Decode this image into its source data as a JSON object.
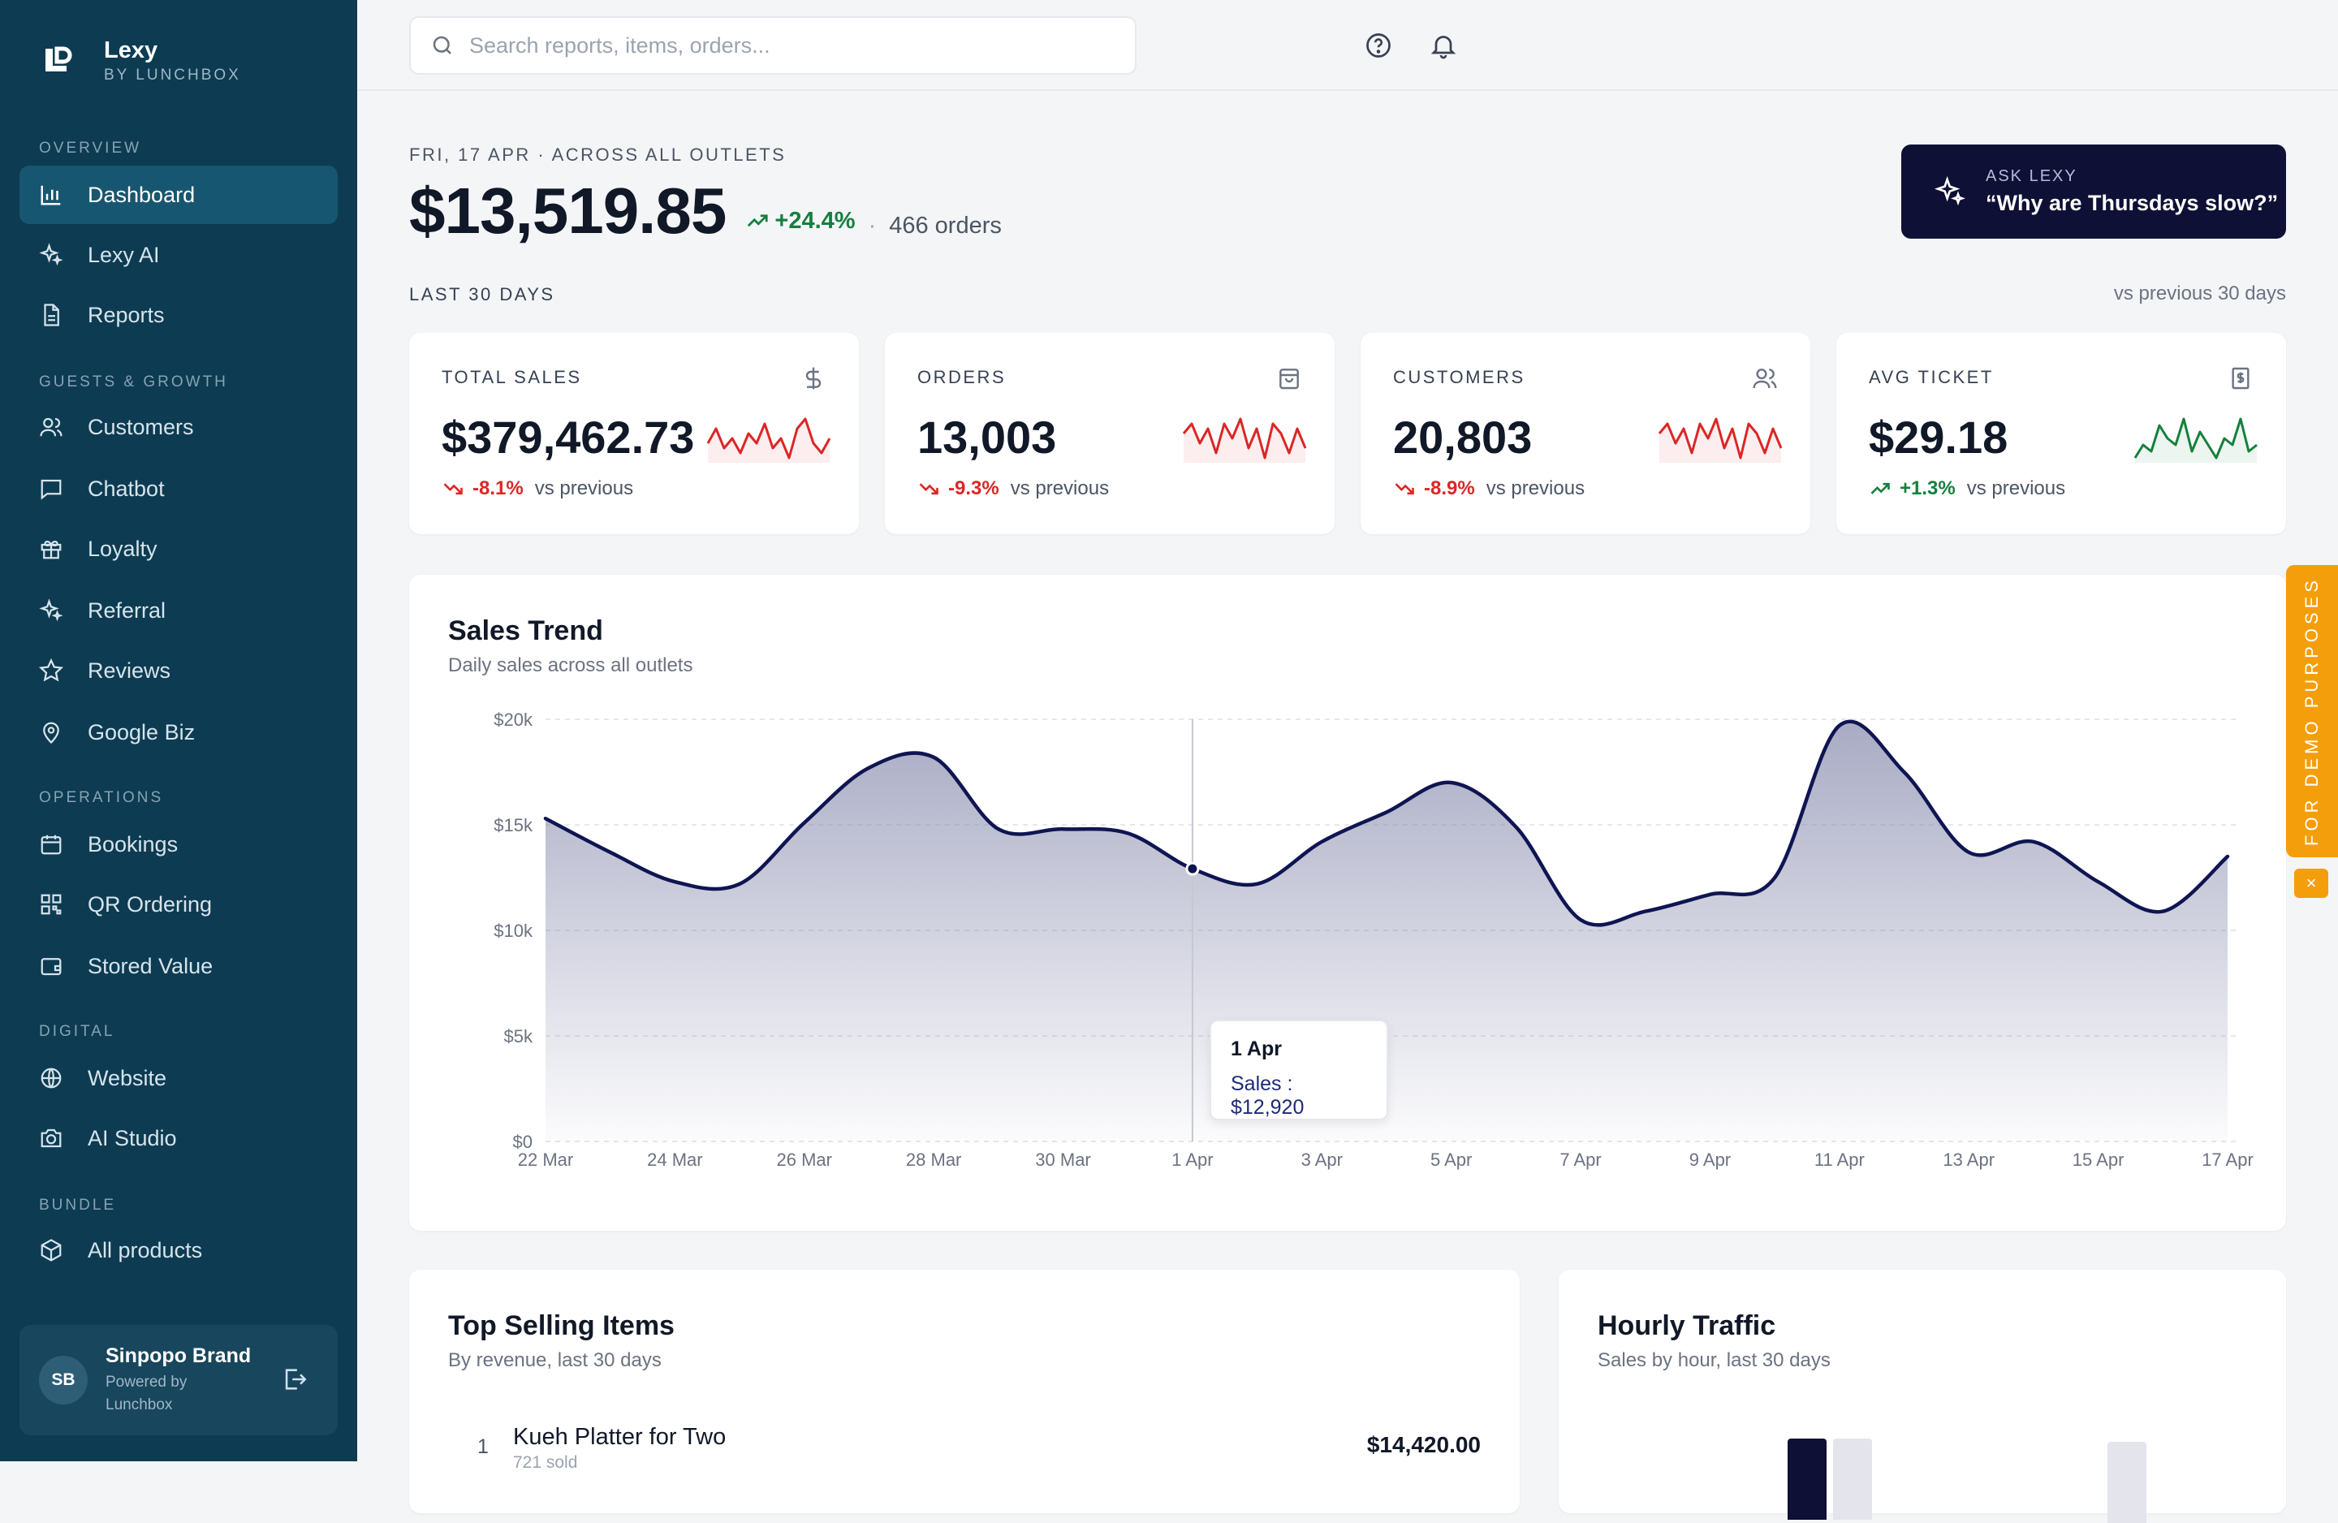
{
  "brand": {
    "name": "Lexy",
    "sub": "BY LUNCHBOX"
  },
  "sidebar": {
    "sections": [
      {
        "label": "OVERVIEW",
        "items": [
          {
            "label": "Dashboard",
            "icon": "bar-chart-icon",
            "active": true
          },
          {
            "label": "Lexy AI",
            "icon": "sparkles-icon"
          },
          {
            "label": "Reports",
            "icon": "document-icon"
          }
        ]
      },
      {
        "label": "GUESTS & GROWTH",
        "items": [
          {
            "label": "Customers",
            "icon": "users-icon"
          },
          {
            "label": "Chatbot",
            "icon": "chat-icon"
          },
          {
            "label": "Loyalty",
            "icon": "gift-icon"
          },
          {
            "label": "Referral",
            "icon": "sparkles-icon"
          },
          {
            "label": "Reviews",
            "icon": "star-icon"
          },
          {
            "label": "Google Biz",
            "icon": "map-pin-icon"
          }
        ]
      },
      {
        "label": "OPERATIONS",
        "items": [
          {
            "label": "Bookings",
            "icon": "calendar-icon"
          },
          {
            "label": "QR Ordering",
            "icon": "qr-code-icon"
          },
          {
            "label": "Stored Value",
            "icon": "wallet-icon"
          }
        ]
      },
      {
        "label": "DIGITAL",
        "items": [
          {
            "label": "Website",
            "icon": "globe-icon"
          },
          {
            "label": "AI Studio",
            "icon": "camera-icon"
          }
        ]
      },
      {
        "label": "BUNDLE",
        "items": [
          {
            "label": "All products",
            "icon": "box-icon"
          }
        ]
      }
    ]
  },
  "user": {
    "initials": "SB",
    "name": "Sinpopo Brand",
    "sub": "Powered by Lunchbox"
  },
  "search": {
    "placeholder": "Search reports, items, orders..."
  },
  "header": {
    "eyebrow": "FRI, 17 APR · ACROSS ALL OUTLETS",
    "amount": "$13,519.85",
    "delta": "+24.4%",
    "separator": "·",
    "orders": "466 orders",
    "period_label": "LAST 30 DAYS",
    "period_compare": "vs previous 30 days"
  },
  "ask": {
    "label": "ASK LEXY",
    "question": "“Why are Thursdays slow?”"
  },
  "kpis": [
    {
      "label": "TOTAL SALES",
      "icon": "dollar-icon",
      "value": "$379,462.73",
      "delta": "-8.1%",
      "vs": "vs previous",
      "trend": "down",
      "color": "#dc2626",
      "spark": [
        5,
        8,
        4,
        6,
        3,
        7,
        5,
        9,
        4,
        6,
        2,
        8,
        10,
        5,
        3,
        6
      ]
    },
    {
      "label": "ORDERS",
      "icon": "bag-icon",
      "value": "13,003",
      "delta": "-9.3%",
      "vs": "vs previous",
      "trend": "down",
      "color": "#dc2626",
      "spark": [
        7,
        9,
        5,
        8,
        3,
        9,
        6,
        10,
        4,
        8,
        2,
        9,
        7,
        3,
        8,
        4
      ]
    },
    {
      "label": "CUSTOMERS",
      "icon": "users-icon",
      "value": "20,803",
      "delta": "-8.9%",
      "vs": "vs previous",
      "trend": "down",
      "color": "#dc2626",
      "spark": [
        7,
        9,
        5,
        8,
        3,
        9,
        6,
        10,
        4,
        8,
        2,
        9,
        7,
        3,
        8,
        4
      ]
    },
    {
      "label": "AVG TICKET",
      "icon": "receipt-icon",
      "value": "$29.18",
      "delta": "+1.3%",
      "vs": "vs previous",
      "trend": "up",
      "color": "#15803d",
      "spark": [
        3,
        5,
        4,
        8,
        6,
        5,
        9,
        4,
        7,
        5,
        3,
        6,
        5,
        9,
        4,
        5
      ]
    }
  ],
  "trend": {
    "title": "Sales Trend",
    "subtitle": "Daily sales across all outlets",
    "tooltip": {
      "date": "1 Apr",
      "text": "Sales : $12,920"
    }
  },
  "chart_data": {
    "type": "area",
    "x": [
      "22 Mar",
      "23 Mar",
      "24 Mar",
      "25 Mar",
      "26 Mar",
      "27 Mar",
      "28 Mar",
      "29 Mar",
      "30 Mar",
      "31 Mar",
      "1 Apr",
      "2 Apr",
      "3 Apr",
      "4 Apr",
      "5 Apr",
      "6 Apr",
      "7 Apr",
      "8 Apr",
      "9 Apr",
      "10 Apr",
      "11 Apr",
      "12 Apr",
      "13 Apr",
      "14 Apr",
      "15 Apr",
      "16 Apr",
      "17 Apr"
    ],
    "values": [
      15300,
      13700,
      12300,
      12200,
      15100,
      17700,
      18200,
      14800,
      14800,
      14600,
      12920,
      12200,
      14200,
      15600,
      17000,
      14900,
      10500,
      10900,
      11700,
      12500,
      19700,
      17500,
      13700,
      14200,
      12300,
      10900,
      13500
    ],
    "tick_labels": [
      "22 Mar",
      "24 Mar",
      "26 Mar",
      "28 Mar",
      "30 Mar",
      "1 Apr",
      "3 Apr",
      "5 Apr",
      "7 Apr",
      "9 Apr",
      "11 Apr",
      "13 Apr",
      "15 Apr",
      "17 Apr"
    ],
    "y_ticks": [
      "$0",
      "$5k",
      "$10k",
      "$15k",
      "$20k"
    ],
    "ylim": [
      0,
      20000
    ],
    "grid": true,
    "color": "#0f1552",
    "highlight": "1 Apr"
  },
  "top_items": {
    "title": "Top Selling Items",
    "subtitle": "By revenue, last 30 days",
    "items": [
      {
        "rank": "1",
        "name": "Kueh Platter for Two",
        "sold": "721 sold",
        "revenue": "$14,420.00"
      }
    ]
  },
  "hourly": {
    "title": "Hourly Traffic",
    "subtitle": "Sales by hour, last 30 days"
  },
  "demo": {
    "label": "FOR DEMO PURPOSES",
    "close": "×"
  }
}
